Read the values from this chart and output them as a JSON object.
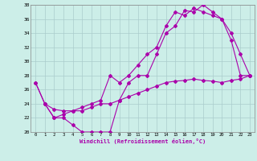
{
  "xlabel": "Windchill (Refroidissement éolien,°C)",
  "bg_color": "#cceee8",
  "line_color": "#aa00aa",
  "grid_color": "#aacccc",
  "xlim": [
    -0.5,
    23.5
  ],
  "ylim": [
    20,
    38
  ],
  "yticks": [
    20,
    22,
    24,
    26,
    28,
    30,
    32,
    34,
    36,
    38
  ],
  "xticks": [
    0,
    1,
    2,
    3,
    4,
    5,
    6,
    7,
    8,
    9,
    10,
    11,
    12,
    13,
    14,
    15,
    16,
    17,
    18,
    19,
    20,
    21,
    22,
    23
  ],
  "line1_x": [
    0,
    1,
    2,
    3,
    4,
    5,
    6,
    7,
    8,
    9,
    10,
    11,
    12,
    13,
    14,
    15,
    16,
    17,
    18,
    19,
    20,
    21,
    22,
    23
  ],
  "line1_y": [
    27,
    24,
    22,
    22,
    21,
    20,
    20,
    20,
    20,
    24.5,
    27,
    28,
    28,
    31,
    34,
    35,
    37.2,
    37,
    38,
    37,
    36,
    33,
    28,
    28
  ],
  "line2_x": [
    0,
    1,
    2,
    3,
    4,
    5,
    6,
    7,
    8,
    9,
    10,
    11,
    12,
    13,
    14,
    15,
    16,
    17,
    18,
    19,
    20,
    21,
    22,
    23
  ],
  "line2_y": [
    27,
    24,
    22,
    22.5,
    23,
    23.5,
    24,
    24.5,
    28,
    27,
    28,
    29.5,
    31,
    32,
    35,
    37,
    36.5,
    37.5,
    37,
    36.5,
    36,
    34,
    31,
    28
  ],
  "line3_x": [
    1,
    2,
    3,
    4,
    5,
    6,
    7,
    8,
    9,
    10,
    11,
    12,
    13,
    14,
    15,
    16,
    17,
    18,
    19,
    20,
    21,
    22,
    23
  ],
  "line3_y": [
    24,
    23.2,
    23,
    23,
    23,
    23.5,
    24,
    24,
    24.5,
    25,
    25.5,
    26,
    26.5,
    27,
    27.2,
    27.3,
    27.5,
    27.3,
    27.2,
    27.0,
    27.3,
    27.5,
    28
  ]
}
